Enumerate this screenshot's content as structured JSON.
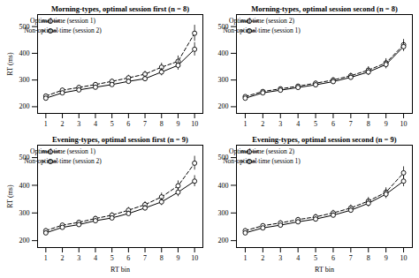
{
  "chart_data": [
    {
      "type": "line",
      "title": "Morning-types, optimal session first (n = 8)",
      "ylabel": "RT (ms)",
      "x": [
        1,
        2,
        3,
        4,
        5,
        6,
        7,
        8,
        9,
        10
      ],
      "series": [
        {
          "name": "Optimal time (session 1)",
          "color": "#000000",
          "line_style": "solid",
          "marker": "circle",
          "values": [
            232,
            252,
            263,
            273,
            283,
            295,
            305,
            330,
            355,
            415
          ],
          "errors": [
            6,
            6,
            7,
            7,
            8,
            9,
            10,
            14,
            18,
            25
          ]
        },
        {
          "name": "Non-optimal time (session 2)",
          "color": "#000000",
          "line_style": "dashed",
          "marker": "circle",
          "values": [
            240,
            262,
            272,
            283,
            295,
            308,
            322,
            348,
            370,
            475
          ],
          "errors": [
            7,
            7,
            8,
            8,
            9,
            10,
            11,
            15,
            20,
            30
          ]
        }
      ],
      "xlim": [
        0.5,
        10.5
      ],
      "xticks": [
        1,
        2,
        3,
        4,
        5,
        6,
        7,
        8,
        9,
        10
      ],
      "ylim": [
        175,
        545
      ],
      "yticks": [
        200,
        300,
        400,
        500
      ],
      "grid": false,
      "legend": "upper left"
    },
    {
      "type": "line",
      "title": "Morning-types, optimal session second (n = 8)",
      "x": [
        1,
        2,
        3,
        4,
        5,
        6,
        7,
        8,
        9,
        10
      ],
      "series": [
        {
          "name": "Optimal time (session 2)",
          "color": "#000000",
          "line_style": "solid",
          "marker": "circle",
          "values": [
            232,
            252,
            262,
            272,
            282,
            294,
            310,
            330,
            358,
            425
          ],
          "errors": [
            6,
            6,
            7,
            7,
            8,
            9,
            10,
            13,
            16,
            18
          ]
        },
        {
          "name": "Non-optimal time (session 1)",
          "color": "#000000",
          "line_style": "dashed",
          "marker": "circle",
          "values": [
            238,
            257,
            267,
            277,
            288,
            300,
            316,
            337,
            364,
            432
          ],
          "errors": [
            6,
            6,
            7,
            7,
            8,
            9,
            10,
            13,
            16,
            20
          ]
        }
      ],
      "xlim": [
        0.5,
        10.5
      ],
      "xticks": [
        1,
        2,
        3,
        4,
        5,
        6,
        7,
        8,
        9,
        10
      ],
      "ylim": [
        175,
        545
      ],
      "yticks": [
        200,
        300,
        400,
        500
      ],
      "grid": false,
      "legend": "upper left"
    },
    {
      "type": "line",
      "title": "Evening-types, optimal session first (n = 9)",
      "xlabel": "RT bin",
      "ylabel": "RT (ms)",
      "x": [
        1,
        2,
        3,
        4,
        5,
        6,
        7,
        8,
        9,
        10
      ],
      "series": [
        {
          "name": "Optimal time (session 1)",
          "color": "#000000",
          "line_style": "solid",
          "marker": "circle",
          "values": [
            228,
            248,
            258,
            272,
            282,
            298,
            318,
            340,
            375,
            415
          ],
          "errors": [
            6,
            6,
            7,
            7,
            8,
            9,
            10,
            13,
            16,
            20
          ]
        },
        {
          "name": "Non-optimal time (session 2)",
          "color": "#000000",
          "line_style": "dashed",
          "marker": "circle",
          "values": [
            236,
            256,
            266,
            280,
            292,
            310,
            330,
            358,
            398,
            480
          ],
          "errors": [
            7,
            7,
            8,
            8,
            9,
            10,
            11,
            14,
            18,
            25
          ]
        }
      ],
      "xlim": [
        0.5,
        10.5
      ],
      "xticks": [
        1,
        2,
        3,
        4,
        5,
        6,
        7,
        8,
        9,
        10
      ],
      "ylim": [
        175,
        545
      ],
      "yticks": [
        200,
        300,
        400,
        500
      ],
      "grid": false,
      "legend": "upper left"
    },
    {
      "type": "line",
      "title": "Evening-types, optimal session second (n = 9)",
      "xlabel": "RT bin",
      "x": [
        1,
        2,
        3,
        4,
        5,
        6,
        7,
        8,
        9,
        10
      ],
      "series": [
        {
          "name": "Optimal time (session 2)",
          "color": "#000000",
          "line_style": "solid",
          "marker": "circle",
          "values": [
            228,
            246,
            256,
            268,
            278,
            292,
            310,
            335,
            368,
            415
          ],
          "errors": [
            6,
            6,
            7,
            7,
            8,
            9,
            10,
            13,
            16,
            20
          ]
        },
        {
          "name": "Non-optimal time (session 1)",
          "color": "#000000",
          "line_style": "dashed",
          "marker": "circle",
          "values": [
            236,
            254,
            264,
            276,
            286,
            300,
            318,
            343,
            375,
            445
          ],
          "errors": [
            7,
            7,
            8,
            8,
            9,
            10,
            11,
            13,
            16,
            22
          ]
        }
      ],
      "xlim": [
        0.5,
        10.5
      ],
      "xticks": [
        1,
        2,
        3,
        4,
        5,
        6,
        7,
        8,
        9,
        10
      ],
      "ylim": [
        175,
        545
      ],
      "yticks": [
        200,
        300,
        400,
        500
      ],
      "grid": false,
      "legend": "upper left"
    }
  ]
}
